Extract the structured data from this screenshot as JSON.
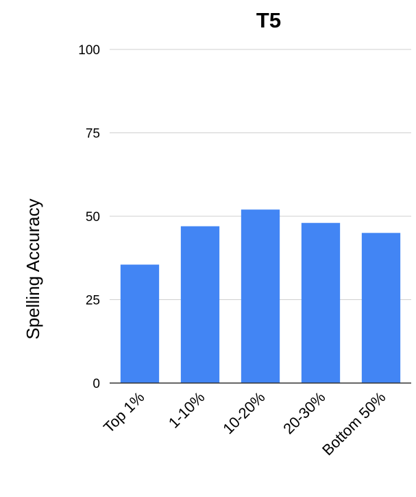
{
  "chart_data": {
    "type": "bar",
    "title": "T5",
    "xlabel": "",
    "ylabel": "Spelling Accuracy",
    "categories": [
      "Top 1%",
      "1-10%",
      "10-20%",
      "20-30%",
      "Bottom 50%"
    ],
    "values": [
      35.5,
      47,
      52,
      48,
      45
    ],
    "ylim": [
      0,
      100
    ],
    "yticks": [
      0,
      25,
      50,
      75,
      100
    ],
    "grid": true,
    "legend": "none",
    "colors": {
      "bar": "#4285f4",
      "grid": "#cfcfcf",
      "axis": "#333333"
    }
  }
}
